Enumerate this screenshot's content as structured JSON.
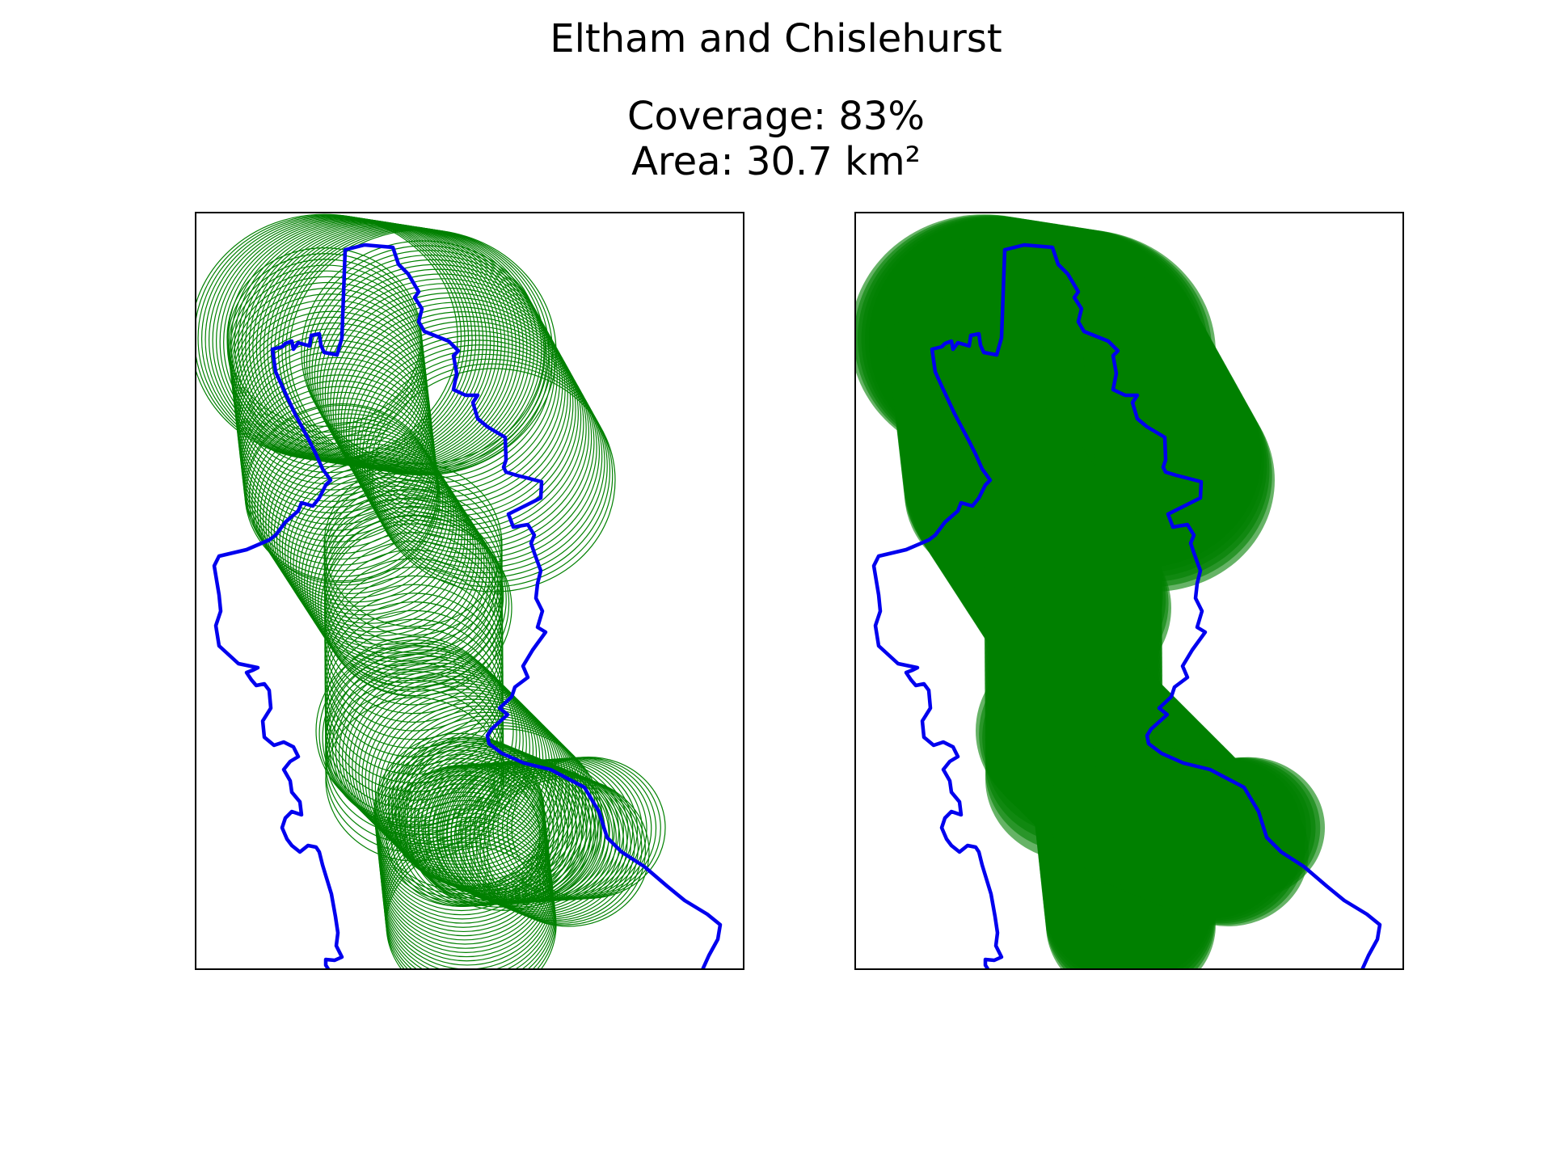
{
  "figure": {
    "title": "Eltham and Chislehurst",
    "coverage_line": "Coverage: 83%",
    "area_line": "Area: 30.7 km²"
  },
  "colors": {
    "boundary": "#0000ee",
    "coverage": "#008000",
    "frame": "#000000",
    "background": "#ffffff"
  },
  "panels": [
    {
      "name": "outline-view",
      "style": "circle outlines"
    },
    {
      "name": "filled-view",
      "style": "filled circles"
    }
  ]
}
